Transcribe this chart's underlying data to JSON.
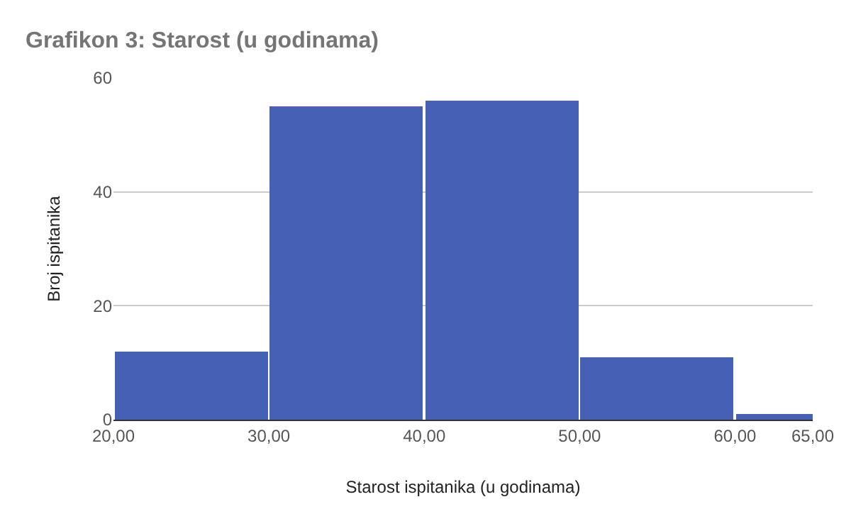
{
  "chart_data": {
    "type": "histogram",
    "title": "Grafikon 3: Starost (u godinama)",
    "xlabel": "Starost ispitanika (u godinama)",
    "ylabel": "Broj ispitanika",
    "bins": [
      20,
      30,
      40,
      50,
      60,
      65
    ],
    "values": [
      12,
      55,
      56,
      11,
      1
    ],
    "color": "#4660b5",
    "xlim": [
      20,
      65
    ],
    "xticks": [
      {
        "value": 20,
        "label": "20,00"
      },
      {
        "value": 30,
        "label": "30,00"
      },
      {
        "value": 40,
        "label": "40,00"
      },
      {
        "value": 50,
        "label": "50,00"
      },
      {
        "value": 60,
        "label": "60,00"
      },
      {
        "value": 65,
        "label": "65,00"
      }
    ],
    "ylim": [
      0,
      60
    ],
    "yticks": [
      0,
      20,
      40,
      60
    ],
    "grid": "y"
  }
}
